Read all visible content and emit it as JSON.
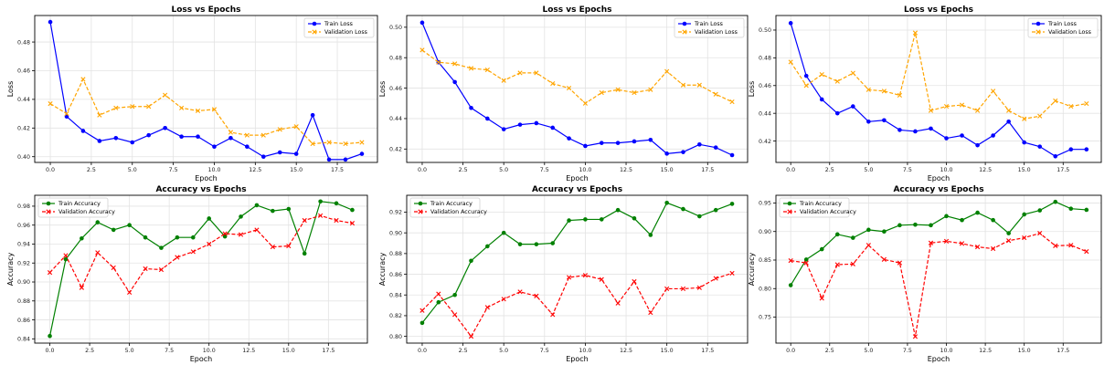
{
  "colors": {
    "train_loss": "#0000ff",
    "val_loss": "#ffa500",
    "train_acc": "#008000",
    "val_acc": "#ff0000"
  },
  "chart_data": [
    {
      "type": "line",
      "title": "Loss vs Epochs",
      "xlabel": "Epoch",
      "ylabel": "Loss",
      "xlim": [
        -0.95,
        19.95
      ],
      "ylim": [
        0.396,
        0.4985
      ],
      "xticks": [
        0,
        2.5,
        5,
        7.5,
        10,
        12.5,
        15,
        17.5
      ],
      "xtick_labels": [
        "0.0",
        "2.5",
        "5.0",
        "7.5",
        "10.0",
        "12.5",
        "15.0",
        "17.5"
      ],
      "yticks": [
        0.4,
        0.42,
        0.44,
        0.46,
        0.48
      ],
      "ytick_labels": [
        "0.40",
        "0.42",
        "0.44",
        "0.46",
        "0.48"
      ],
      "grid": true,
      "legend": "top-right",
      "x": [
        0,
        1,
        2,
        3,
        4,
        5,
        6,
        7,
        8,
        9,
        10,
        11,
        12,
        13,
        14,
        15,
        16,
        17,
        18,
        19
      ],
      "series": [
        {
          "name": "Train Loss",
          "style": "train_loss",
          "values": [
            0.494,
            0.428,
            0.418,
            0.411,
            0.413,
            0.41,
            0.415,
            0.42,
            0.414,
            0.414,
            0.407,
            0.413,
            0.407,
            0.4,
            0.403,
            0.402,
            0.429,
            0.398,
            0.398,
            0.402
          ]
        },
        {
          "name": "Validation Loss",
          "style": "val_loss",
          "values": [
            0.437,
            0.43,
            0.454,
            0.429,
            0.434,
            0.435,
            0.435,
            0.443,
            0.434,
            0.432,
            0.433,
            0.417,
            0.415,
            0.415,
            0.419,
            0.421,
            0.409,
            0.41,
            0.409,
            0.41
          ]
        }
      ]
    },
    {
      "type": "line",
      "title": "Loss vs Epochs",
      "xlabel": "Epoch",
      "ylabel": "Loss",
      "xlim": [
        -0.95,
        19.95
      ],
      "ylim": [
        0.4112,
        0.5077
      ],
      "xticks": [
        0,
        2.5,
        5,
        7.5,
        10,
        12.5,
        15,
        17.5
      ],
      "xtick_labels": [
        "0.0",
        "2.5",
        "5.0",
        "7.5",
        "10.0",
        "12.5",
        "15.0",
        "17.5"
      ],
      "yticks": [
        0.42,
        0.44,
        0.46,
        0.48,
        0.5
      ],
      "ytick_labels": [
        "0.42",
        "0.44",
        "0.46",
        "0.48",
        "0.50"
      ],
      "grid": true,
      "legend": "top-right",
      "x": [
        0,
        1,
        2,
        3,
        4,
        5,
        6,
        7,
        8,
        9,
        10,
        11,
        12,
        13,
        14,
        15,
        16,
        17,
        18,
        19
      ],
      "series": [
        {
          "name": "Train Loss",
          "style": "train_loss",
          "values": [
            0.503,
            0.477,
            0.464,
            0.447,
            0.44,
            0.433,
            0.436,
            0.437,
            0.434,
            0.427,
            0.422,
            0.424,
            0.424,
            0.425,
            0.426,
            0.417,
            0.418,
            0.423,
            0.421,
            0.416
          ]
        },
        {
          "name": "Validation Loss",
          "style": "val_loss",
          "values": [
            0.485,
            0.477,
            0.476,
            0.473,
            0.472,
            0.465,
            0.47,
            0.47,
            0.463,
            0.46,
            0.45,
            0.457,
            0.459,
            0.457,
            0.459,
            0.471,
            0.462,
            0.462,
            0.456,
            0.451
          ]
        }
      ]
    },
    {
      "type": "line",
      "title": "Loss vs Epochs",
      "xlabel": "Epoch",
      "ylabel": "Loss",
      "xlim": [
        -0.95,
        19.95
      ],
      "ylim": [
        0.4046,
        0.5105
      ],
      "xticks": [
        0,
        2.5,
        5,
        7.5,
        10,
        12.5,
        15,
        17.5
      ],
      "xtick_labels": [
        "0.0",
        "2.5",
        "5.0",
        "7.5",
        "10.0",
        "12.5",
        "15.0",
        "17.5"
      ],
      "yticks": [
        0.42,
        0.44,
        0.46,
        0.48,
        0.5
      ],
      "ytick_labels": [
        "0.42",
        "0.44",
        "0.46",
        "0.48",
        "0.50"
      ],
      "grid": true,
      "legend": "top-right",
      "x": [
        0,
        1,
        2,
        3,
        4,
        5,
        6,
        7,
        8,
        9,
        10,
        11,
        12,
        13,
        14,
        15,
        16,
        17,
        18,
        19
      ],
      "series": [
        {
          "name": "Train Loss",
          "style": "train_loss",
          "values": [
            0.505,
            0.467,
            0.45,
            0.44,
            0.445,
            0.434,
            0.435,
            0.428,
            0.427,
            0.429,
            0.422,
            0.424,
            0.417,
            0.424,
            0.434,
            0.419,
            0.416,
            0.409,
            0.414,
            0.414
          ]
        },
        {
          "name": "Validation Loss",
          "style": "val_loss",
          "values": [
            0.477,
            0.46,
            0.468,
            0.463,
            0.469,
            0.457,
            0.456,
            0.453,
            0.498,
            0.442,
            0.445,
            0.446,
            0.442,
            0.456,
            0.442,
            0.436,
            0.438,
            0.449,
            0.445,
            0.447
          ]
        }
      ]
    },
    {
      "type": "line",
      "title": "Accuracy vs Epochs",
      "xlabel": "Epoch",
      "ylabel": "Accuracy",
      "xlim": [
        -0.95,
        19.95
      ],
      "ylim": [
        0.8355,
        0.9915
      ],
      "xticks": [
        0,
        2.5,
        5,
        7.5,
        10,
        12.5,
        15,
        17.5
      ],
      "xtick_labels": [
        "0.0",
        "2.5",
        "5.0",
        "7.5",
        "10.0",
        "12.5",
        "15.0",
        "17.5"
      ],
      "yticks": [
        0.84,
        0.86,
        0.88,
        0.9,
        0.92,
        0.94,
        0.96,
        0.98
      ],
      "ytick_labels": [
        "0.84",
        "0.86",
        "0.88",
        "0.90",
        "0.92",
        "0.94",
        "0.96",
        "0.98"
      ],
      "grid": true,
      "legend": "top-left",
      "x": [
        0,
        1,
        2,
        3,
        4,
        5,
        6,
        7,
        8,
        9,
        10,
        11,
        12,
        13,
        14,
        15,
        16,
        17,
        18,
        19
      ],
      "series": [
        {
          "name": "Train Accuracy",
          "style": "train_acc",
          "values": [
            0.843,
            0.924,
            0.946,
            0.963,
            0.955,
            0.96,
            0.947,
            0.936,
            0.947,
            0.947,
            0.967,
            0.948,
            0.969,
            0.981,
            0.975,
            0.977,
            0.93,
            0.985,
            0.983,
            0.976
          ]
        },
        {
          "name": "Validation Accuracy",
          "style": "val_acc",
          "values": [
            0.91,
            0.928,
            0.894,
            0.931,
            0.915,
            0.889,
            0.914,
            0.913,
            0.926,
            0.932,
            0.94,
            0.951,
            0.95,
            0.955,
            0.937,
            0.938,
            0.965,
            0.97,
            0.965,
            0.962
          ]
        }
      ]
    },
    {
      "type": "line",
      "title": "Accuracy vs Epochs",
      "xlabel": "Epoch",
      "ylabel": "Accuracy",
      "xlim": [
        -0.95,
        19.95
      ],
      "ylim": [
        0.7935,
        0.9363
      ],
      "xticks": [
        0,
        2.5,
        5,
        7.5,
        10,
        12.5,
        15,
        17.5
      ],
      "xtick_labels": [
        "0.0",
        "2.5",
        "5.0",
        "7.5",
        "10.0",
        "12.5",
        "15.0",
        "17.5"
      ],
      "yticks": [
        0.8,
        0.82,
        0.84,
        0.86,
        0.88,
        0.9,
        0.92
      ],
      "ytick_labels": [
        "0.80",
        "0.82",
        "0.84",
        "0.86",
        "0.88",
        "0.90",
        "0.92"
      ],
      "grid": true,
      "legend": "top-left",
      "x": [
        0,
        1,
        2,
        3,
        4,
        5,
        6,
        7,
        8,
        9,
        10,
        11,
        12,
        13,
        14,
        15,
        16,
        17,
        18,
        19
      ],
      "series": [
        {
          "name": "Train Accuracy",
          "style": "train_acc",
          "values": [
            0.813,
            0.833,
            0.84,
            0.873,
            0.887,
            0.9,
            0.889,
            0.889,
            0.89,
            0.912,
            0.913,
            0.913,
            0.922,
            0.914,
            0.898,
            0.929,
            0.923,
            0.916,
            0.922,
            0.928
          ]
        },
        {
          "name": "Validation Accuracy",
          "style": "val_acc",
          "values": [
            0.825,
            0.841,
            0.821,
            0.8,
            0.828,
            0.836,
            0.843,
            0.839,
            0.821,
            0.857,
            0.859,
            0.855,
            0.832,
            0.853,
            0.823,
            0.846,
            0.846,
            0.847,
            0.856,
            0.861
          ]
        }
      ]
    },
    {
      "type": "line",
      "title": "Accuracy vs Epochs",
      "xlabel": "Epoch",
      "ylabel": "Accuracy",
      "xlim": [
        -0.95,
        19.95
      ],
      "ylim": [
        0.7045,
        0.9635
      ],
      "xticks": [
        0,
        2.5,
        5,
        7.5,
        10,
        12.5,
        15,
        17.5
      ],
      "xtick_labels": [
        "0.0",
        "2.5",
        "5.0",
        "7.5",
        "10.0",
        "12.5",
        "15.0",
        "17.5"
      ],
      "yticks": [
        0.75,
        0.8,
        0.85,
        0.9,
        0.95
      ],
      "ytick_labels": [
        "0.75",
        "0.80",
        "0.85",
        "0.90",
        "0.95"
      ],
      "grid": true,
      "legend": "top-left",
      "x": [
        0,
        1,
        2,
        3,
        4,
        5,
        6,
        7,
        8,
        9,
        10,
        11,
        12,
        13,
        14,
        15,
        16,
        17,
        18,
        19
      ],
      "series": [
        {
          "name": "Train Accuracy",
          "style": "train_acc",
          "values": [
            0.806,
            0.851,
            0.869,
            0.895,
            0.889,
            0.903,
            0.9,
            0.911,
            0.912,
            0.911,
            0.927,
            0.92,
            0.933,
            0.92,
            0.897,
            0.93,
            0.937,
            0.952,
            0.94,
            0.938
          ]
        },
        {
          "name": "Validation Accuracy",
          "style": "val_acc",
          "values": [
            0.849,
            0.845,
            0.783,
            0.842,
            0.843,
            0.876,
            0.851,
            0.845,
            0.716,
            0.88,
            0.883,
            0.879,
            0.873,
            0.87,
            0.884,
            0.889,
            0.897,
            0.875,
            0.876,
            0.865
          ]
        }
      ]
    }
  ]
}
